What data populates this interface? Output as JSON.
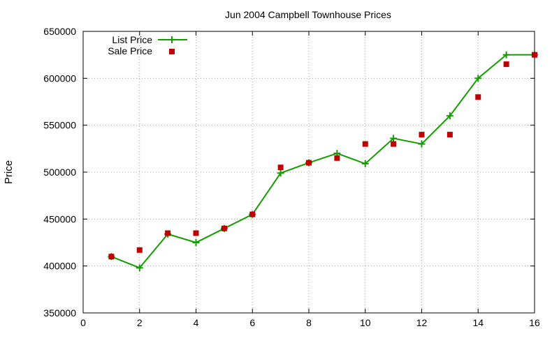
{
  "chart_data": {
    "type": "line",
    "title": "Jun 2004 Campbell Townhouse Prices",
    "xlabel": "",
    "ylabel": "Price",
    "xlim": [
      0,
      16
    ],
    "ylim": [
      350000,
      650000
    ],
    "x_ticks": [
      0,
      2,
      4,
      6,
      8,
      10,
      12,
      14,
      16
    ],
    "y_ticks": [
      350000,
      400000,
      450000,
      500000,
      550000,
      600000,
      650000
    ],
    "grid": true,
    "legend_position": "top-left",
    "series": [
      {
        "name": "List Price",
        "style": "line+cross",
        "color": "#129c00",
        "x": [
          1,
          2,
          3,
          4,
          5,
          6,
          7,
          8,
          9,
          10,
          11,
          12,
          13,
          14,
          15,
          16
        ],
        "y": [
          410000,
          398000,
          434000,
          425000,
          440000,
          455000,
          499000,
          510000,
          520000,
          509000,
          536000,
          530000,
          560000,
          600000,
          625000,
          625000
        ]
      },
      {
        "name": "Sale Price",
        "style": "square",
        "color": "#c00000",
        "x": [
          1,
          2,
          3,
          4,
          5,
          6,
          7,
          8,
          9,
          10,
          11,
          12,
          13,
          14,
          15,
          16
        ],
        "y": [
          410000,
          417000,
          435000,
          435000,
          440000,
          455000,
          505000,
          510000,
          515000,
          530000,
          530000,
          540000,
          540000,
          580000,
          615000,
          625000
        ]
      }
    ]
  }
}
